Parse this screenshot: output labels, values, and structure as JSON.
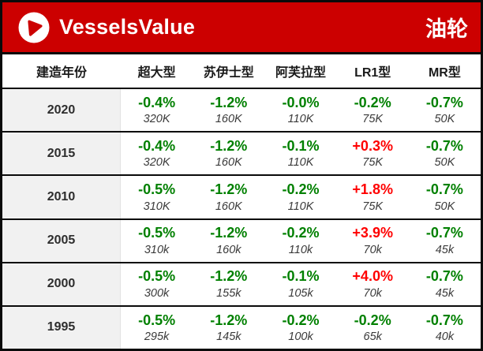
{
  "header": {
    "brand": "VesselsValue",
    "title": "油轮",
    "logo_icon": "play-circle-icon"
  },
  "colors": {
    "brand_red": "#CC0000",
    "negative_green": "#008000",
    "positive_red": "#FF0000",
    "year_cell_bg": "#F1F1F1",
    "border_black": "#0A0A0A"
  },
  "chart_data": {
    "type": "table",
    "title": "油轮",
    "columns": [
      "建造年份",
      "超大型",
      "苏伊士型",
      "阿芙拉型",
      "LR1型",
      "MR型"
    ],
    "rows": [
      {
        "year": "2020",
        "cells": [
          {
            "pct": "-0.4%",
            "value": "320K",
            "dir": "neg"
          },
          {
            "pct": "-1.2%",
            "value": "160K",
            "dir": "neg"
          },
          {
            "pct": "-0.0%",
            "value": "110K",
            "dir": "neg"
          },
          {
            "pct": "-0.2%",
            "value": "75K",
            "dir": "neg"
          },
          {
            "pct": "-0.7%",
            "value": "50K",
            "dir": "neg"
          }
        ]
      },
      {
        "year": "2015",
        "cells": [
          {
            "pct": "-0.4%",
            "value": "320K",
            "dir": "neg"
          },
          {
            "pct": "-1.2%",
            "value": "160K",
            "dir": "neg"
          },
          {
            "pct": "-0.1%",
            "value": "110K",
            "dir": "neg"
          },
          {
            "pct": "+0.3%",
            "value": "75K",
            "dir": "pos"
          },
          {
            "pct": "-0.7%",
            "value": "50K",
            "dir": "neg"
          }
        ]
      },
      {
        "year": "2010",
        "cells": [
          {
            "pct": "-0.5%",
            "value": "310K",
            "dir": "neg"
          },
          {
            "pct": "-1.2%",
            "value": "160K",
            "dir": "neg"
          },
          {
            "pct": "-0.2%",
            "value": "110K",
            "dir": "neg"
          },
          {
            "pct": "+1.8%",
            "value": "75K",
            "dir": "pos"
          },
          {
            "pct": "-0.7%",
            "value": "50K",
            "dir": "neg"
          }
        ]
      },
      {
        "year": "2005",
        "cells": [
          {
            "pct": "-0.5%",
            "value": "310k",
            "dir": "neg"
          },
          {
            "pct": "-1.2%",
            "value": "160k",
            "dir": "neg"
          },
          {
            "pct": "-0.2%",
            "value": "110k",
            "dir": "neg"
          },
          {
            "pct": "+3.9%",
            "value": "70k",
            "dir": "pos"
          },
          {
            "pct": "-0.7%",
            "value": "45k",
            "dir": "neg"
          }
        ]
      },
      {
        "year": "2000",
        "cells": [
          {
            "pct": "-0.5%",
            "value": "300k",
            "dir": "neg"
          },
          {
            "pct": "-1.2%",
            "value": "155k",
            "dir": "neg"
          },
          {
            "pct": "-0.1%",
            "value": "105k",
            "dir": "neg"
          },
          {
            "pct": "+4.0%",
            "value": "70k",
            "dir": "pos"
          },
          {
            "pct": "-0.7%",
            "value": "45k",
            "dir": "neg"
          }
        ]
      },
      {
        "year": "1995",
        "cells": [
          {
            "pct": "-0.5%",
            "value": "295k",
            "dir": "neg"
          },
          {
            "pct": "-1.2%",
            "value": "145k",
            "dir": "neg"
          },
          {
            "pct": "-0.2%",
            "value": "100k",
            "dir": "neg"
          },
          {
            "pct": "-0.2%",
            "value": "65k",
            "dir": "neg"
          },
          {
            "pct": "-0.7%",
            "value": "40k",
            "dir": "neg"
          }
        ]
      }
    ]
  }
}
